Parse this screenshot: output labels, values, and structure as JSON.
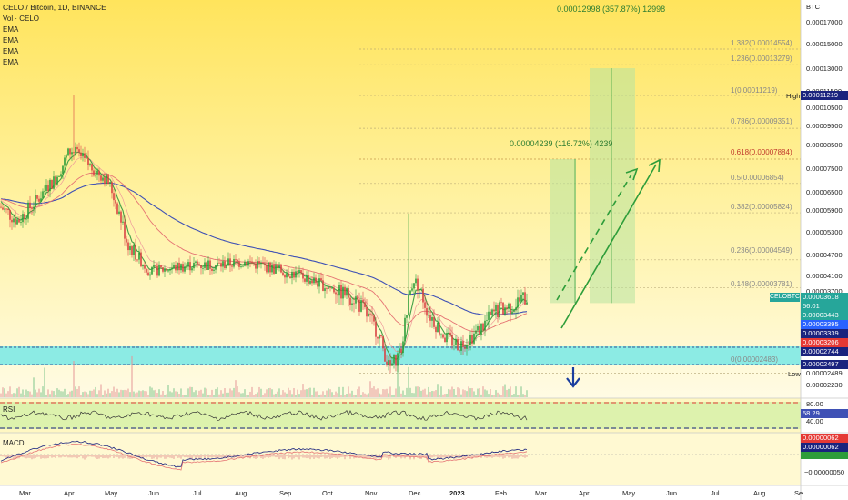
{
  "header": {
    "symbol_line": "CELO / Bitcoin, 1D, BINANCE",
    "vol_label": "Vol · CELO",
    "ema_labels": [
      "EMA",
      "EMA",
      "EMA",
      "EMA"
    ]
  },
  "price_axis": {
    "currency": "BTC",
    "ticks": [
      "0.00017000",
      "0.00015000",
      "0.00013000",
      "0.00011500",
      "0.00010500",
      "0.00009500",
      "0.00008500",
      "0.00007500",
      "0.00006500",
      "0.00005900",
      "0.00005300",
      "0.00004700",
      "0.00004100",
      "0.00003700",
      "0.00002489",
      "0.00002230"
    ],
    "high_label": "High",
    "high_value": "0.00011219",
    "low_label": "Low",
    "badges": [
      {
        "text": "0.00003618",
        "color": "#26a69a"
      },
      {
        "text": "56:01",
        "color": "#26a69a"
      },
      {
        "text": "0.00003443",
        "color": "#26a69a"
      },
      {
        "text": "0.00003395",
        "color": "#2962ff"
      },
      {
        "text": "0.00003339",
        "color": "#1a237e"
      },
      {
        "text": "0.00003206",
        "color": "#e53935"
      },
      {
        "text": "0.00002744",
        "color": "#1a237e"
      },
      {
        "text": "0.00002497",
        "color": "#1a237e"
      }
    ],
    "pair_tag": "CELOBTC"
  },
  "fib_levels": [
    {
      "label": "1.382(0.00014554)"
    },
    {
      "label": "1.236(0.00013279)"
    },
    {
      "label": "1(0.00011219)"
    },
    {
      "label": "0.786(0.00009351)"
    },
    {
      "label": "0.618(0.00007884)"
    },
    {
      "label": "0.5(0.00006854)"
    },
    {
      "label": "0.382(0.00005824)"
    },
    {
      "label": "0.236(0.00004549)"
    },
    {
      "label": "0.148(0.00003781)"
    },
    {
      "label": "0(0.00002483)"
    }
  ],
  "targets": {
    "top_target": "0.00012998 (357.87%) 12998",
    "mid_target": "0.00004239 (116.72%) 4239"
  },
  "rsi": {
    "label": "RSI",
    "upper": "80.00",
    "value": "58.29",
    "lower": "40.00"
  },
  "macd": {
    "label": "MACD",
    "values": [
      "0.00000062",
      "0.00000062"
    ],
    "low_tick": "−0.00000050"
  },
  "time_axis": {
    "labels": [
      "Mar",
      "Apr",
      "May",
      "Jun",
      "Jul",
      "Aug",
      "Sep",
      "Oct",
      "Nov",
      "Dec",
      "2023",
      "Feb",
      "Mar",
      "Apr",
      "May",
      "Jun",
      "Jul",
      "Aug",
      "Se"
    ]
  },
  "colors": {
    "bg_top": "#ffe66b",
    "bg_bottom": "#fffbe2",
    "green": "#2e9d3a",
    "ema_blue": "#3f51b5",
    "ema_red": "#e57373",
    "ema_green": "#43a047",
    "cyan_band": "#6fe7e7"
  },
  "chart_data": {
    "type": "candlestick",
    "title": "CELO / Bitcoin, 1D, BINANCE",
    "ylabel": "BTC",
    "ylim": [
      2.15e-05,
      0.000175
    ],
    "x_categories": [
      "Mar",
      "Apr",
      "May",
      "Jun",
      "Jul",
      "Aug",
      "Sep",
      "Oct",
      "Nov",
      "Dec",
      "Jan",
      "Feb"
    ],
    "approx_close_by_month": [
      6.5e-05,
      7.8e-05,
      6.7e-05,
      4.2e-05,
      4.2e-05,
      4.4e-05,
      4.1e-05,
      3.6e-05,
      2.9e-05,
      3.2e-05,
      2.9e-05,
      3.4e-05
    ],
    "last_close": 3.618e-05,
    "high": 0.00011219,
    "low": 2.483e-05,
    "projection_targets": [
      7.884e-05,
      0.00012998
    ],
    "legend": [
      "EMA",
      "EMA",
      "EMA",
      "EMA"
    ]
  }
}
